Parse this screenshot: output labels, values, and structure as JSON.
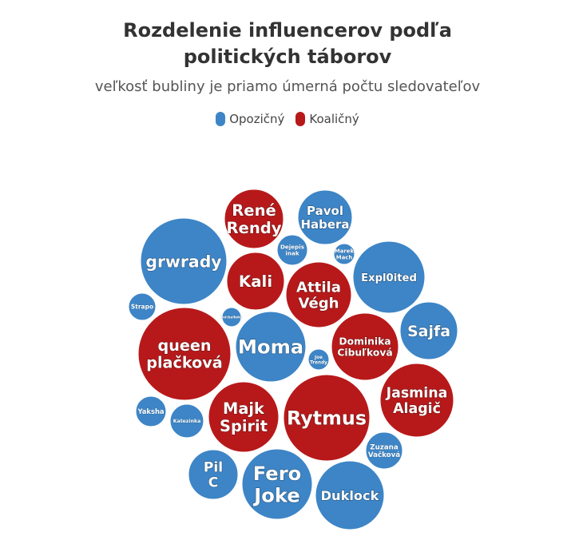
{
  "title": "Rozdelenie influencerov podľa politických táborov",
  "subtitle": "veľkosť bubliny je priamo úmerná počtu sledovateľov",
  "legend": [
    {
      "name": "Opozičný",
      "color": "#3d85c6"
    },
    {
      "name": "Koaličný",
      "color": "#b7191a"
    }
  ],
  "chart_data": {
    "type": "bubble",
    "series": [
      {
        "name": "Opozičný",
        "color": "#3d85c6",
        "points": [
          {
            "label": "grwrady"
          },
          {
            "label": "Pavol Habera"
          },
          {
            "label": "Dejepis inak"
          },
          {
            "label": "Marek Mach"
          },
          {
            "label": "Expl0ited"
          },
          {
            "label": "Strapo"
          },
          {
            "label": "Pelcbalboko"
          },
          {
            "label": "Moma"
          },
          {
            "label": "Sajfa"
          },
          {
            "label": "Joe Trendy"
          },
          {
            "label": "Yaksha"
          },
          {
            "label": "Katezinka"
          },
          {
            "label": "Zuzana Vačková"
          },
          {
            "label": "Pil C"
          },
          {
            "label": "Fero Joke"
          },
          {
            "label": "Duklock"
          }
        ]
      },
      {
        "name": "Koaličný",
        "color": "#b7191a",
        "points": [
          {
            "label": "René Rendy"
          },
          {
            "label": "Kali"
          },
          {
            "label": "Attila Végh"
          },
          {
            "label": "queen plačková"
          },
          {
            "label": "Dominika Cibuľková"
          },
          {
            "label": "Jasmina Alagič"
          },
          {
            "label": "Majk Spirit"
          },
          {
            "label": "Rytmus"
          }
        ]
      }
    ]
  }
}
